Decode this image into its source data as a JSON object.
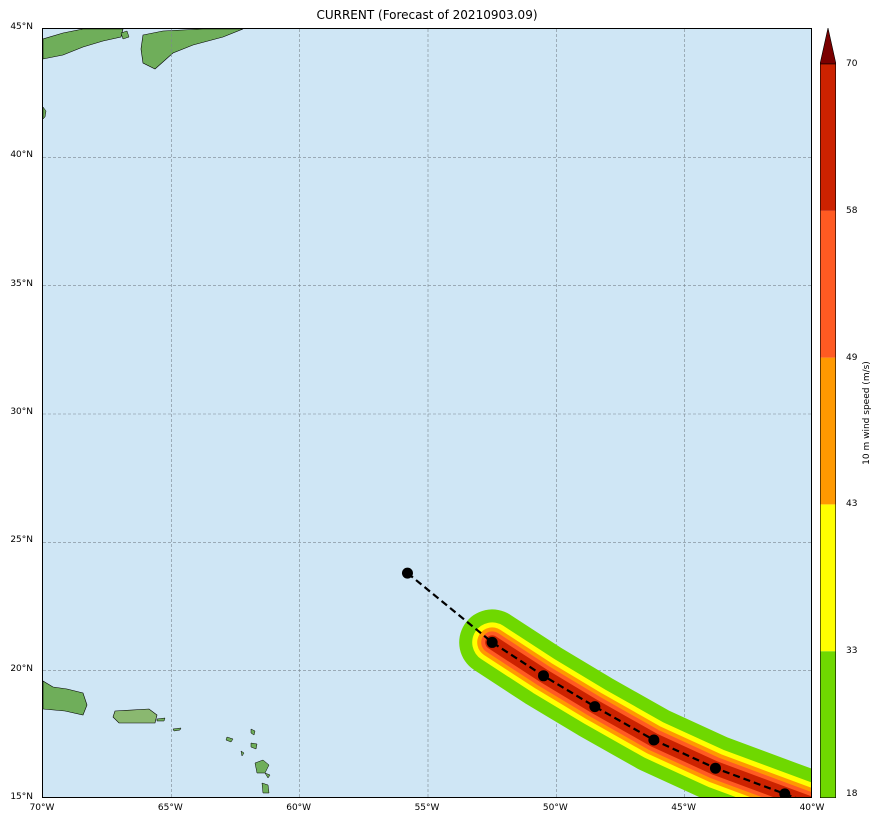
{
  "title": "CURRENT (Forecast of 20210903.09)",
  "map": {
    "lon_range": [
      -70,
      -40
    ],
    "lat_range": [
      15,
      45
    ],
    "gridlines": true,
    "ocean_color": "#cfe6f5",
    "land_color": "#6fae5a",
    "lat_labels": [
      "45°N",
      "40°N",
      "35°N",
      "30°N",
      "25°N",
      "20°N",
      "15°N"
    ],
    "lon_labels": [
      "70°W",
      "65°W",
      "60°W",
      "55°W",
      "50°W",
      "45°W",
      "40°W"
    ]
  },
  "track": {
    "points": [
      {
        "lon": -55.8,
        "lat": 23.8
      },
      {
        "lon": -52.5,
        "lat": 21.1
      },
      {
        "lon": -50.5,
        "lat": 19.8
      },
      {
        "lon": -48.5,
        "lat": 18.6
      },
      {
        "lon": -46.2,
        "lat": 17.3
      },
      {
        "lon": -43.8,
        "lat": 16.2
      },
      {
        "lon": -41.1,
        "lat": 15.2
      }
    ],
    "swath_start_index": 1
  },
  "colorbar": {
    "label": "10 m wind speed (m/s)",
    "ticks": [
      "18",
      "33",
      "43",
      "49",
      "58",
      "70"
    ],
    "colors": [
      "#6fd800",
      "#ffff00",
      "#ff9900",
      "#ff5a22",
      "#cc2200"
    ],
    "extend_color": "#7a0000"
  }
}
